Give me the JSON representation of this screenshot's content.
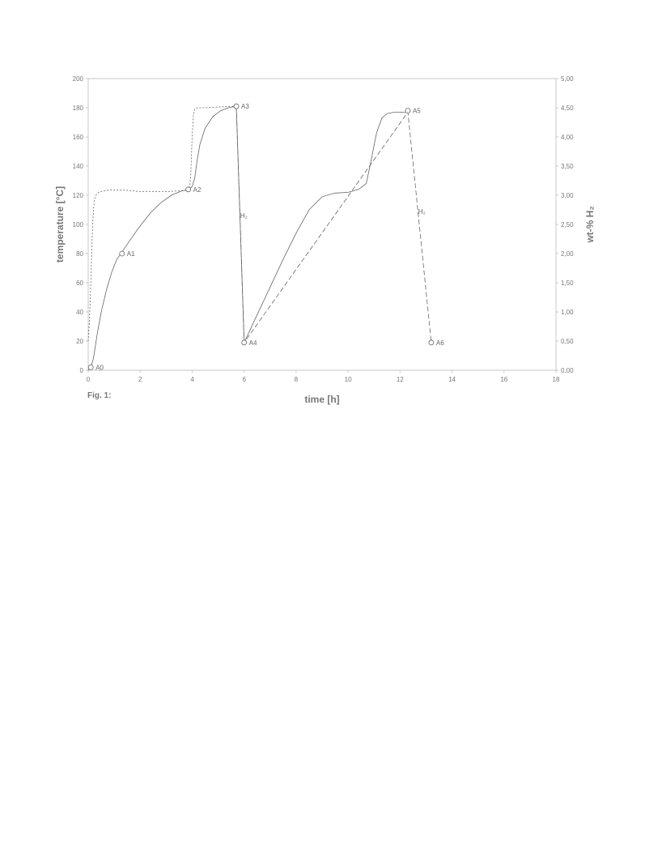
{
  "figure_label": "Fig. 1:",
  "chart_data": {
    "type": "line",
    "xlabel": "time [h]",
    "ylabel": "temperature [°C]",
    "y2label": "wt-% H₂",
    "xlim": [
      0,
      18
    ],
    "ylim": [
      0,
      200
    ],
    "y2lim": [
      0,
      5
    ],
    "x_ticks": [
      "0",
      "2",
      "4",
      "6",
      "8",
      "10",
      "12",
      "14",
      "16",
      "18"
    ],
    "y_ticks": [
      "0",
      "20",
      "40",
      "60",
      "80",
      "100",
      "120",
      "140",
      "160",
      "180",
      "200"
    ],
    "y2_ticks": [
      "0,00",
      "0,50",
      "1,00",
      "1,50",
      "2,00",
      "2,50",
      "3,00",
      "3,50",
      "4,00",
      "4,50",
      "5,00"
    ],
    "grid": false,
    "series": [
      {
        "style": "solid",
        "axis": "left",
        "x": [
          0,
          0.1,
          0.2,
          0.35,
          0.5,
          0.7,
          0.9,
          1.1,
          1.3,
          1.6,
          2.0,
          2.4,
          2.8,
          3.2,
          3.6,
          3.9,
          4.0,
          4.1,
          4.2,
          4.3,
          4.5,
          4.8,
          5.1,
          5.4,
          5.7,
          6.0,
          6.5,
          7.0,
          7.5,
          8.0,
          8.5,
          9.0,
          9.5,
          10.0,
          10.4,
          10.7,
          10.9,
          11.1,
          11.3,
          11.5,
          11.8,
          12.1,
          12.3
        ],
        "y": [
          0,
          2,
          8,
          25,
          40,
          55,
          67,
          76,
          81,
          89,
          99,
          108,
          115,
          120,
          123,
          124,
          126,
          132,
          145,
          155,
          166,
          174,
          178,
          180,
          181,
          19,
          38,
          57,
          76,
          94,
          110,
          119,
          121.5,
          122,
          124,
          128,
          145,
          163,
          173,
          176,
          177,
          177,
          177
        ]
      },
      {
        "style": "dashed",
        "axis": "left",
        "x": [
          5.7,
          6.0,
          12.3,
          13.2
        ],
        "y": [
          181,
          19,
          177,
          19
        ]
      },
      {
        "style": "dotted",
        "axis": "left",
        "x": [
          0,
          0.05,
          0.1,
          0.15,
          0.2,
          0.25,
          0.3,
          0.4,
          0.6,
          0.8,
          1.0,
          1.4,
          2.0,
          2.6,
          3.0,
          3.5,
          3.85,
          3.9,
          3.95,
          4.0,
          4.05,
          4.1,
          4.2,
          4.5,
          5.0,
          5.7
        ],
        "y": [
          20,
          35,
          60,
          90,
          110,
          118,
          120,
          122,
          123,
          123.5,
          123.5,
          123.5,
          122.5,
          122.5,
          122.5,
          123,
          123.5,
          124,
          135,
          160,
          175,
          179,
          180,
          180,
          180.5,
          181
        ]
      }
    ],
    "points": [
      {
        "label": "A0",
        "x": 0.1,
        "y": 2
      },
      {
        "label": "A1",
        "x": 1.3,
        "y": 80
      },
      {
        "label": "A2",
        "x": 3.85,
        "y": 124
      },
      {
        "label": "A3",
        "x": 5.7,
        "y": 181
      },
      {
        "label": "A4",
        "x": 6.0,
        "y": 19
      },
      {
        "label": "A5",
        "x": 12.3,
        "y": 178
      },
      {
        "label": "A6",
        "x": 13.2,
        "y": 19
      }
    ],
    "annotations": [
      {
        "text": "H₂",
        "x": 5.85,
        "y": 106
      },
      {
        "text": "H₂",
        "x": 12.7,
        "y": 109
      }
    ]
  }
}
